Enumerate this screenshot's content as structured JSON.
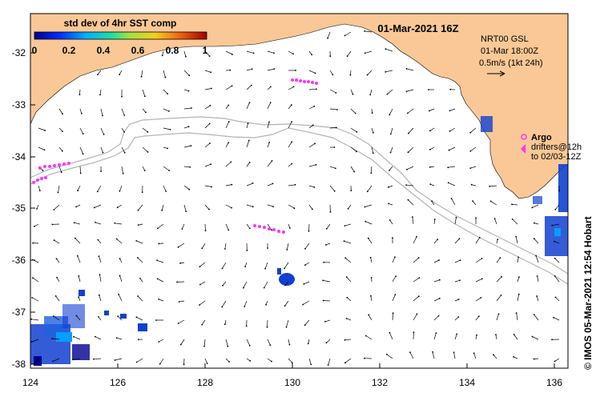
{
  "map": {
    "title": "01-Mar-2021 16Z",
    "colorbar": {
      "label": "std dev of 4hr SST comp",
      "ticks": [
        "0",
        "0.2",
        "0.4",
        "0.6",
        "0.8",
        "1"
      ],
      "min": 0,
      "max": 1
    },
    "lat_ticks": [
      "-32",
      "-33",
      "-34",
      "-35",
      "-36",
      "-37",
      "-38"
    ],
    "lon_ticks": [
      "124",
      "126",
      "128",
      "130",
      "132",
      "134",
      "136"
    ],
    "current_legend": {
      "line1": "NRT00 GSL",
      "line2": "01-Mar 18:00Z",
      "line3": "0.5m/s (1kt 24h)"
    },
    "argo_legend": {
      "label": "Argo",
      "line1": "drifters@12h",
      "line2": "to 02/03-12Z"
    },
    "credit": "© IMOS 05-Mar-2021 12:54 Hobart",
    "colors": {
      "land": "#f9c896",
      "isobath": "#b4b4b4",
      "drifter": "#ff33ff",
      "arrow": "#000000",
      "sst_high": "#1040d0",
      "sst_low": "#000080"
    }
  }
}
